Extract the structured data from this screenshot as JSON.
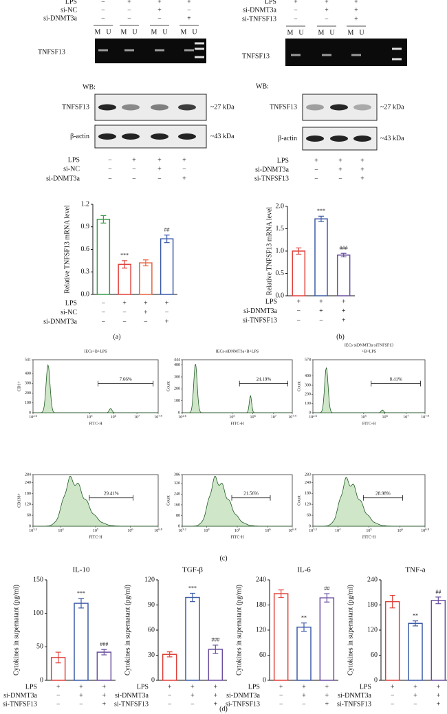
{
  "blots": [
    {
      "top_conditions": [
        {
          "label": "LPS",
          "signs": [
            "−",
            "+",
            "+",
            "+"
          ]
        },
        {
          "label": "si-NC",
          "signs": [
            "−",
            "−",
            "+",
            "−"
          ]
        },
        {
          "label": "si-DNMT3a",
          "signs": [
            "−",
            "−",
            "−",
            "+"
          ]
        }
      ],
      "lane_labels": [
        "M",
        "U",
        "M",
        "U",
        "M",
        "U",
        "M",
        "U"
      ],
      "gel_label": "TNFSF13",
      "wb_label": "WB:",
      "wb_rows": [
        {
          "label": "TNFSF13",
          "size": "~27 kDa"
        },
        {
          "label": "β-actin",
          "size": "~43 kDa"
        }
      ],
      "bottom_conditions": [
        {
          "label": "LPS",
          "signs": [
            "−",
            "+",
            "+",
            "+"
          ]
        },
        {
          "label": "si-NC",
          "signs": [
            "−",
            "−",
            "+",
            "−"
          ]
        },
        {
          "label": "si-DNMT3a",
          "signs": [
            "−",
            "−",
            "−",
            "+"
          ]
        }
      ]
    },
    {
      "top_conditions": [
        {
          "label": "LPS",
          "signs": [
            "+",
            "+",
            "+"
          ]
        },
        {
          "label": "si-DNMT3a",
          "signs": [
            "−",
            "+",
            "+"
          ]
        },
        {
          "label": "si-TNFSF13",
          "signs": [
            "−",
            "−",
            "+"
          ]
        }
      ],
      "lane_labels": [
        "M",
        "U",
        "M",
        "U",
        "M",
        "U"
      ],
      "gel_label": "TNFSF13",
      "wb_label": "WB:",
      "wb_rows": [
        {
          "label": "TNFSF13",
          "size": "~27 kDa"
        },
        {
          "label": "β-actin",
          "size": "~43 kDa"
        }
      ],
      "bottom_conditions": [
        {
          "label": "LPS",
          "signs": [
            "+",
            "+",
            "+"
          ]
        },
        {
          "label": "si-DNMT3a",
          "signs": [
            "−",
            "+",
            "+"
          ]
        },
        {
          "label": "si-TNFSF13",
          "signs": [
            "−",
            "−",
            "+"
          ]
        }
      ]
    }
  ],
  "chart_data": [
    {
      "type": "bar",
      "y_label": "Relative TNFSF13 mRNA level",
      "values": [
        1.0,
        0.4,
        0.42,
        0.74
      ],
      "errors": [
        0.05,
        0.05,
        0.04,
        0.05
      ],
      "colors": [
        "#3a9a4a",
        "#e0413b",
        "#e8623a",
        "#3c5ba8"
      ],
      "annotations": [
        null,
        "***",
        null,
        "##"
      ],
      "ylim": [
        0,
        1.2
      ],
      "yticks": [
        {
          "value": 0,
          "label": "0.0"
        },
        0.3,
        0.6,
        0.9,
        1.2
      ],
      "conditions": [
        {
          "label": "LPS",
          "signs": [
            "−",
            "+",
            "+",
            "+"
          ]
        },
        {
          "label": "si-NC",
          "signs": [
            "−",
            "−",
            "+",
            "−"
          ]
        },
        {
          "label": "si-DNMT3a",
          "signs": [
            "−",
            "−",
            "−",
            "+"
          ]
        }
      ]
    },
    {
      "type": "bar",
      "y_label": "Relative TNFSF13 mRNA level",
      "values": [
        1.0,
        1.72,
        0.91
      ],
      "errors": [
        0.07,
        0.06,
        0.04
      ],
      "colors": [
        "#e0413b",
        "#3c5ba8",
        "#6a4fa0"
      ],
      "annotations": [
        null,
        "***",
        "###"
      ],
      "ylim": [
        0,
        2.0
      ],
      "yticks": [
        {
          "value": 0,
          "label": "0.0"
        },
        0.5,
        {
          "value": 1,
          "label": "1.0"
        },
        1.5,
        {
          "value": 2,
          "label": "2.0"
        }
      ],
      "conditions": [
        {
          "label": "LPS",
          "signs": [
            "+",
            "+",
            "+"
          ]
        },
        {
          "label": "si-DNMT3a",
          "signs": [
            "−",
            "+",
            "+"
          ]
        },
        {
          "label": "si-TNFSF13",
          "signs": [
            "−",
            "−",
            "+"
          ]
        }
      ]
    },
    {
      "type": "bar",
      "title": "IL-10",
      "y_label": "Cytokines in supernatant (pg/ml)",
      "values": [
        34,
        115,
        42
      ],
      "errors": [
        8,
        7,
        4
      ],
      "colors": [
        "#e0413b",
        "#3c5ba8",
        "#6a4fa0"
      ],
      "annotations": [
        null,
        "***",
        "###"
      ],
      "ylim": [
        0,
        150
      ],
      "yticks": [
        0,
        50,
        100,
        150
      ],
      "conditions": [
        {
          "label": "LPS",
          "signs": [
            "+",
            "+",
            "+"
          ]
        },
        {
          "label": "si-DNMT3a",
          "signs": [
            "−",
            "+",
            "+"
          ]
        },
        {
          "label": "si-TNFSF13",
          "signs": [
            "−",
            "−",
            "+"
          ]
        }
      ]
    },
    {
      "type": "bar",
      "title": "TGF-β",
      "y_label": "Cytokines in supernatant (pg/ml)",
      "values": [
        31,
        99,
        37
      ],
      "errors": [
        3,
        5,
        5
      ],
      "colors": [
        "#e0413b",
        "#3c5ba8",
        "#6a4fa0"
      ],
      "annotations": [
        null,
        "***",
        "###"
      ],
      "ylim": [
        0,
        120
      ],
      "yticks": [
        0,
        30,
        60,
        90,
        120
      ],
      "conditions": [
        {
          "label": "LPS",
          "signs": [
            "+",
            "+",
            "+"
          ]
        },
        {
          "label": "si-DNMT3a",
          "signs": [
            "−",
            "+",
            "+"
          ]
        },
        {
          "label": "si-TNFSF13",
          "signs": [
            "−",
            "−",
            "+"
          ]
        }
      ]
    },
    {
      "type": "bar",
      "title": "IL-6",
      "y_label": "Cytokines in supernatant (pg/ml)",
      "values": [
        207,
        127,
        197
      ],
      "errors": [
        9,
        10,
        10
      ],
      "colors": [
        "#e0413b",
        "#3c5ba8",
        "#6a4fa0"
      ],
      "annotations": [
        null,
        "**",
        "##"
      ],
      "ylim": [
        0,
        240
      ],
      "yticks": [
        0,
        60,
        120,
        180,
        240
      ],
      "conditions": [
        {
          "label": "LPS",
          "signs": [
            "+",
            "+",
            "+"
          ]
        },
        {
          "label": "si-DNMT3a",
          "signs": [
            "−",
            "+",
            "+"
          ]
        },
        {
          "label": "si-TNFSF13",
          "signs": [
            "−",
            "−",
            "+"
          ]
        }
      ]
    },
    {
      "type": "bar",
      "title": "TNF-a",
      "y_label": "Cytokines in supernatant (pg/ml)",
      "values": [
        188,
        136,
        191
      ],
      "errors": [
        15,
        6,
        8
      ],
      "colors": [
        "#e0413b",
        "#3c5ba8",
        "#6a4fa0"
      ],
      "annotations": [
        null,
        "**",
        "##"
      ],
      "ylim": [
        0,
        240
      ],
      "yticks": [
        0,
        60,
        120,
        180,
        240
      ],
      "conditions": [
        {
          "label": "LPS",
          "signs": [
            "+",
            "+",
            "+"
          ]
        },
        {
          "label": "si-DNMT3a",
          "signs": [
            "−",
            "+",
            "+"
          ]
        },
        {
          "label": "si-TNFSF13",
          "signs": [
            "−",
            "−",
            "+"
          ]
        }
      ]
    }
  ],
  "flow": {
    "titles": [
      [
        "IECs+B+LPS"
      ],
      [
        "IECs-siDNMT3a+B+LPS"
      ],
      [
        "IECs-siDNMT3a-siTNFSF13",
        "+B+LPS"
      ]
    ],
    "rows": [
      {
        "x_label": "FITC-H",
        "xticks": [
          {
            "base": "10",
            "exp": "2.6"
          },
          {
            "base": "10",
            "exp": "5"
          },
          {
            "base": "10",
            "exp": "6"
          },
          {
            "base": "10",
            "exp": "7"
          },
          {
            "base": "10",
            "exp": "7.9"
          }
        ],
        "panels": [
          {
            "y_label": "CD1+",
            "yticks": [
              0,
              100,
              200,
              300,
              400,
              541
            ],
            "gate": "7.66%"
          },
          {
            "y_label": "Count",
            "yticks": [
              0,
              100,
              200,
              300,
              400,
              444
            ],
            "gate": "24.19%"
          },
          {
            "y_label": "Count",
            "yticks": [
              0,
              100,
              200,
              300,
              400,
              578
            ],
            "gate": "8.41%"
          }
        ]
      },
      {
        "x_label": "FITC-H",
        "xticks": [
          {
            "base": "10",
            "exp": "3.2"
          },
          {
            "base": "10",
            "exp": "4"
          },
          {
            "base": "10",
            "exp": "5"
          },
          {
            "base": "10",
            "exp": "6"
          },
          {
            "base": "10",
            "exp": "6.8"
          }
        ],
        "panels": [
          {
            "y_label": "CD138+",
            "yticks": [
              0,
              60,
              120,
              180,
              240,
              284
            ],
            "gate": "29.41%"
          },
          {
            "y_label": "Count",
            "yticks": [
              0,
              80,
              160,
              240,
              320,
              386
            ],
            "gate": "21.56%"
          },
          {
            "y_label": "Count",
            "yticks": [
              0,
              60,
              120,
              180,
              240,
              283
            ],
            "gate": "28.98%"
          }
        ]
      }
    ]
  },
  "panel_labels": [
    "(a)",
    "(b)",
    "(c)",
    "(d)"
  ]
}
